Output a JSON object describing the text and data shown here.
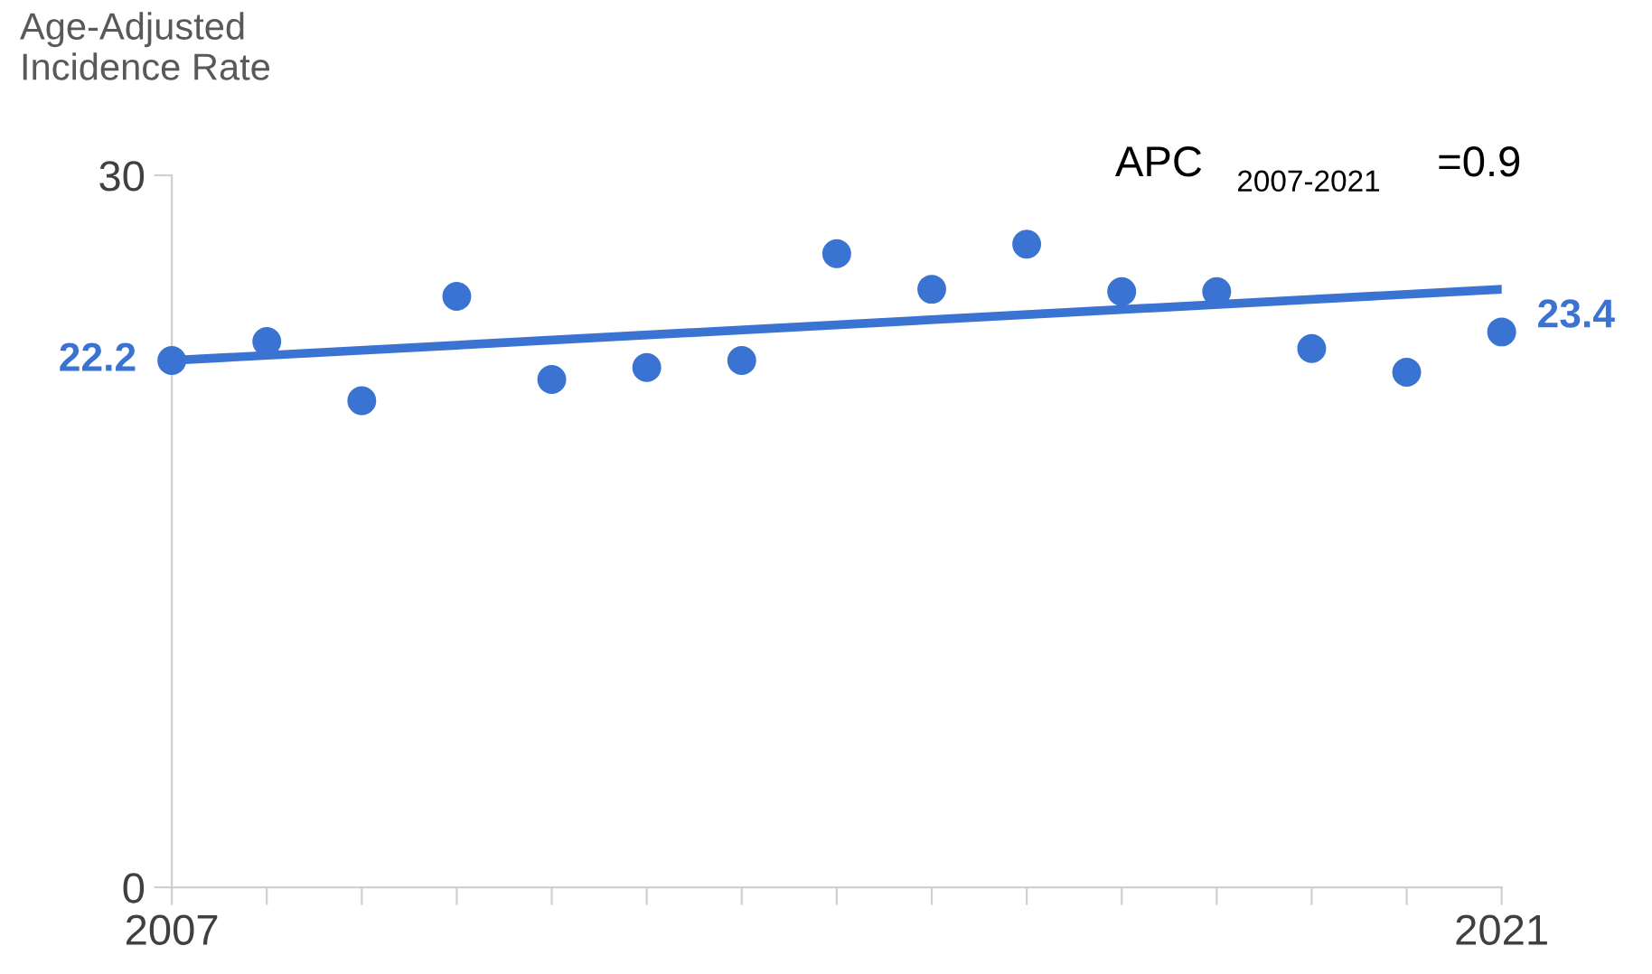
{
  "chart_data": {
    "type": "scatter",
    "ylabel": "Age-Adjusted\nIncidence Rate",
    "x": [
      2007,
      2008,
      2009,
      2010,
      2011,
      2012,
      2013,
      2014,
      2015,
      2016,
      2017,
      2018,
      2019,
      2020,
      2021
    ],
    "series": [
      {
        "color": "#3a73d1",
        "marker": "circle",
        "values": [
          22.2,
          23.0,
          20.5,
          24.9,
          21.4,
          21.9,
          22.2,
          26.7,
          25.2,
          27.1,
          25.1,
          25.1,
          22.7,
          21.7,
          23.4
        ],
        "value_labels": [
          "22.2",
          null,
          null,
          null,
          null,
          null,
          null,
          null,
          null,
          null,
          null,
          null,
          null,
          null,
          "23.4"
        ]
      },
      {
        "type": "line",
        "color": "#3a73d1",
        "line_style": "solid",
        "x": [
          2007,
          2021
        ],
        "values": [
          22.2,
          25.2
        ]
      }
    ],
    "annotations": [
      "APC$_{2007-2021}$=0.9"
    ],
    "xlim": [
      2007,
      2021
    ],
    "xticks": [
      2007,
      {
        "value": 2008,
        "label": null
      },
      {
        "value": 2009,
        "label": null
      },
      {
        "value": 2010,
        "label": null
      },
      {
        "value": 2011,
        "label": null
      },
      {
        "value": 2012,
        "label": null
      },
      {
        "value": 2013,
        "label": null
      },
      {
        "value": 2014,
        "label": null
      },
      {
        "value": 2015,
        "label": null
      },
      {
        "value": 2016,
        "label": null
      },
      {
        "value": 2017,
        "label": null
      },
      {
        "value": 2018,
        "label": null
      },
      {
        "value": 2019,
        "label": null
      },
      {
        "value": 2020,
        "label": null
      },
      2021
    ],
    "ylim": [
      0,
      30
    ],
    "yticks": [
      0,
      30
    ],
    "grid": false,
    "legend": false
  }
}
